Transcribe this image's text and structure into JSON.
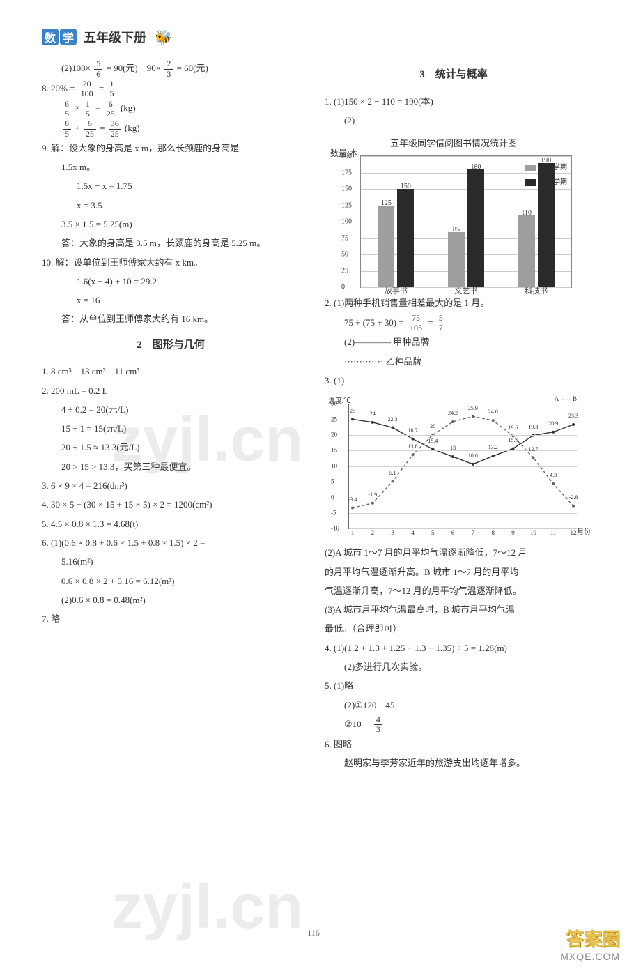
{
  "header": {
    "logo1": "数",
    "logo2": "学",
    "subtitle": "五年级下册",
    "bee": "🐝"
  },
  "left": {
    "l1a": "(2)108×",
    "l1b": "= 90(元)　90×",
    "l1c": "= 60(元)",
    "f1n": "5",
    "f1d": "6",
    "f2n": "2",
    "f2d": "3",
    "l2a": "8. 20% =",
    "f3n": "20",
    "f3d": "100",
    "eq1": "=",
    "f4n": "1",
    "f4d": "5",
    "l3a": "",
    "f5n": "6",
    "f5d": "5",
    "times": "×",
    "f6n": "1",
    "f6d": "5",
    "eq2": "=",
    "f7n": "6",
    "f7d": "25",
    "kg1": "(kg)",
    "f8n": "6",
    "f8d": "5",
    "plus": "+",
    "f9n": "6",
    "f9d": "25",
    "eq3": "=",
    "f10n": "36",
    "f10d": "25",
    "kg2": "(kg)",
    "q9a": "9. 解：设大象的身高是 x m，那么长颈鹿的身高是",
    "q9b": "1.5x m。",
    "q9c": "1.5x − x = 1.75",
    "q9d": "x = 3.5",
    "q9e": "3.5 × 1.5 = 5.25(m)",
    "q9f": "答：大象的身高是 3.5 m，长颈鹿的身高是 5.25 m。",
    "q10a": "10. 解：设单位到王师傅家大约有 x km。",
    "q10b": "1.6(x − 4) + 10 = 29.2",
    "q10c": "x = 16",
    "q10d": "答：从单位到王师傅家大约有 16 km。",
    "sec2": "2　图形与几何",
    "g1": "1. 8 cm³　13 cm³　11 cm³",
    "g2": "2. 200 mL = 0.2 L",
    "g2a": "4 ÷ 0.2 = 20(元/L)",
    "g2b": "15 ÷ 1 = 15(元/L)",
    "g2c": "20 ÷ 1.5 ≈ 13.3(元/L)",
    "g2d": "20 > 15 > 13.3，买第三种最便宜。",
    "g3": "3. 6 × 9 × 4 = 216(dm³)",
    "g4": "4. 30 × 5 + (30 × 15 + 15 × 5) × 2 = 1200(cm²)",
    "g5": "5. 4.5 × 0.8 × 1.3 = 4.68(t)",
    "g6a": "6. (1)(0.6 × 0.8 + 0.6 × 1.5 + 0.8 × 1.5) × 2 =",
    "g6b": "5.16(m²)",
    "g6c": "0.6 × 0.8 × 2 + 5.16 = 6.12(m²)",
    "g6d": "(2)0.6 × 0.8 = 0.48(m²)",
    "g7": "7. 略"
  },
  "right": {
    "sec3": "3　统计与概率",
    "r1": "1. (1)150 × 2 − 110 = 190(本)",
    "r1b": "(2)",
    "chart1": {
      "title": "五年级同学借阅图书情况统计图",
      "y_unit": "数量/本",
      "y_max": 200,
      "y_step": 25,
      "categories": [
        "故事书",
        "文艺书",
        "科技书"
      ],
      "s1_label": "第一学期",
      "s1_color": "#9e9e9e",
      "s1_vals": [
        125,
        85,
        110
      ],
      "s2_label": "第二学期",
      "s2_color": "#2a2a2a",
      "s2_vals": [
        150,
        180,
        190
      ]
    },
    "r2a": "2. (1)两种手机销售量相差最大的是 1 月。",
    "r2b": "75 ÷ (75 + 30) =",
    "f11n": "75",
    "f11d": "105",
    "eq4": "=",
    "f12n": "5",
    "f12d": "7",
    "r2c": "(2)———— 甲种品牌",
    "r2d": "············· 乙种品牌",
    "r3": "3. (1)",
    "chart2": {
      "y_unit": "温度/℃",
      "x_unit": "月份",
      "y_min": -10,
      "y_max": 30,
      "y_step": 5,
      "x_labels": [
        "1",
        "2",
        "3",
        "4",
        "5",
        "6",
        "7",
        "8",
        "9",
        "10",
        "11",
        "12"
      ],
      "a_label": "A",
      "a_style": "solid",
      "a_color": "#333333",
      "a_vals": [
        25,
        24,
        22.3,
        18.7,
        15.4,
        13,
        10.6,
        13.2,
        15.6,
        19.8,
        20.9,
        23.3
      ],
      "b_label": "B",
      "b_style": "dashed",
      "b_color": "#666666",
      "b_vals": [
        -3.4,
        -1.9,
        5.1,
        13.6,
        20.0,
        24.2,
        25.9,
        24.6,
        19.6,
        12.7,
        4.3,
        -2.8
      ]
    },
    "r3b": "(2)A 城市 1～7 月的月平均气温逐渐降低，7～12 月",
    "r3c": "的月平均气温逐渐升高。B 城市 1～7 月的月平均",
    "r3d": "气温逐渐升高，7～12 月的月平均气温逐渐降低。",
    "r3e": "(3)A 城市月平均气温最高时，B 城市月平均气温",
    "r3f": "最低。（合理即可）",
    "r4a": "4. (1)(1.2 + 1.3 + 1.25 + 1.3 + 1.35) ÷ 5 = 1.28(m)",
    "r4b": "(2)多进行几次实验。",
    "r5a": "5. (1)略",
    "r5b": "(2)①120　45",
    "r5c": "②10　",
    "f13n": "4",
    "f13d": "3",
    "r6a": "6. 图略",
    "r6b": "赵明家与李芳家近年的旅游支出均逐年增多。"
  },
  "watermarks": {
    "w1": "zyjl.cn",
    "w2": "zyjl.cn"
  },
  "pagenum": "116",
  "badge": {
    "top": "答案圈",
    "bot": "MXQE.COM"
  }
}
